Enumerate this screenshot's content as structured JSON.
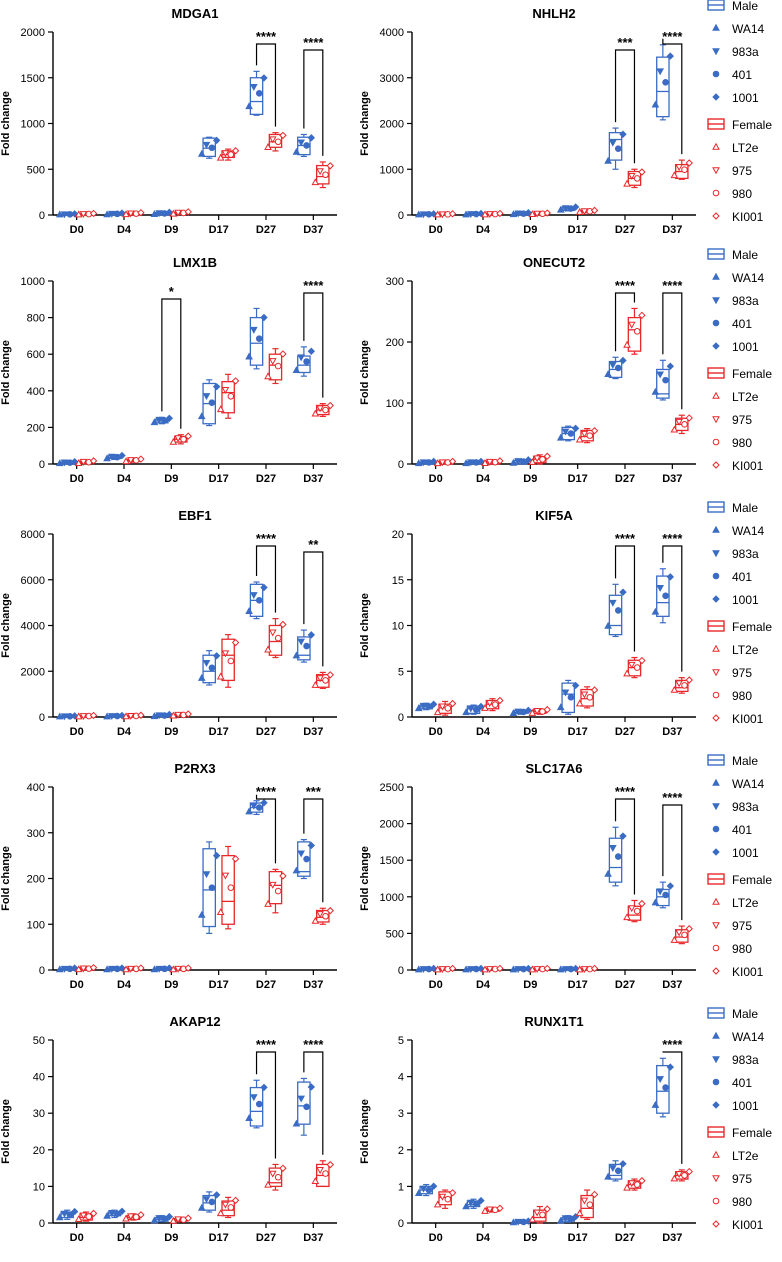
{
  "colors": {
    "male": "#3a6cc4",
    "female": "#e8282b"
  },
  "legend": {
    "male_label": "Male",
    "male_lines": [
      "WA14",
      "983a",
      "401",
      "1001"
    ],
    "female_label": "Female",
    "female_lines": [
      "LT2e",
      "975",
      "980",
      "KI001"
    ]
  },
  "chart_data": [
    {
      "type": "box",
      "title": "MDGA1",
      "ylabel": "Fold change",
      "categories": [
        "D0",
        "D4",
        "D9",
        "D17",
        "D27",
        "D37"
      ],
      "yticks": [
        0,
        500,
        1000,
        1500,
        2000
      ],
      "ylim": [
        0,
        2000
      ],
      "series": [
        {
          "name": "Male",
          "medians": [
            5,
            10,
            15,
            730,
            1240,
            760
          ],
          "q1": [
            0,
            0,
            0,
            640,
            1100,
            660
          ],
          "q3": [
            10,
            20,
            25,
            840,
            1500,
            850
          ],
          "min": [
            0,
            0,
            0,
            620,
            1090,
            640
          ],
          "max": [
            15,
            25,
            35,
            850,
            1570,
            880
          ]
        },
        {
          "name": "Female",
          "medians": [
            8,
            10,
            20,
            660,
            800,
            420
          ],
          "q1": [
            0,
            0,
            10,
            630,
            740,
            340
          ],
          "q3": [
            15,
            20,
            30,
            700,
            880,
            540
          ],
          "min": [
            0,
            0,
            5,
            600,
            700,
            300
          ],
          "max": [
            20,
            30,
            40,
            720,
            900,
            580
          ]
        }
      ],
      "significance": [
        {
          "category": "D27",
          "label": "****"
        },
        {
          "category": "D37",
          "label": "****"
        }
      ]
    },
    {
      "type": "box",
      "title": "NHLH2",
      "ylabel": "Fold change",
      "categories": [
        "D0",
        "D4",
        "D9",
        "D17",
        "D27",
        "D37"
      ],
      "yticks": [
        0,
        1000,
        2000,
        3000,
        4000
      ],
      "ylim": [
        0,
        4000
      ],
      "series": [
        {
          "name": "Male",
          "medians": [
            10,
            20,
            30,
            130,
            1650,
            2700
          ],
          "q1": [
            0,
            0,
            10,
            100,
            1200,
            2150
          ],
          "q3": [
            20,
            35,
            50,
            170,
            1800,
            3450
          ],
          "min": [
            0,
            0,
            0,
            90,
            1000,
            2080
          ],
          "max": [
            30,
            40,
            60,
            190,
            1900,
            3720
          ]
        },
        {
          "name": "Female",
          "medians": [
            15,
            20,
            30,
            80,
            800,
            950
          ],
          "q1": [
            0,
            0,
            10,
            60,
            650,
            800
          ],
          "q3": [
            25,
            35,
            40,
            100,
            950,
            1100
          ],
          "min": [
            0,
            0,
            5,
            50,
            600,
            780
          ],
          "max": [
            30,
            40,
            50,
            110,
            1000,
            1200
          ]
        }
      ],
      "significance": [
        {
          "category": "D27",
          "label": "***"
        },
        {
          "category": "D37",
          "label": "****"
        }
      ]
    },
    {
      "type": "box",
      "title": "LMX1B",
      "ylabel": "Fold change",
      "categories": [
        "D0",
        "D4",
        "D9",
        "D17",
        "D27",
        "D37"
      ],
      "yticks": [
        0,
        200,
        400,
        600,
        800,
        1000
      ],
      "ylim": [
        0,
        1000
      ],
      "series": [
        {
          "name": "Male",
          "medians": [
            5,
            35,
            235,
            330,
            660,
            540
          ],
          "q1": [
            0,
            30,
            225,
            220,
            540,
            500
          ],
          "q3": [
            10,
            45,
            245,
            440,
            800,
            590
          ],
          "min": [
            0,
            25,
            220,
            210,
            520,
            480
          ],
          "max": [
            15,
            50,
            255,
            460,
            850,
            640
          ]
        },
        {
          "name": "Female",
          "medians": [
            10,
            20,
            135,
            390,
            540,
            295
          ],
          "q1": [
            5,
            15,
            120,
            280,
            460,
            270
          ],
          "q3": [
            15,
            25,
            150,
            450,
            600,
            320
          ],
          "min": [
            0,
            10,
            110,
            250,
            440,
            260
          ],
          "max": [
            20,
            30,
            160,
            490,
            630,
            330
          ]
        }
      ],
      "significance": [
        {
          "category": "D9",
          "label": "*"
        },
        {
          "category": "D37",
          "label": "****"
        }
      ]
    },
    {
      "type": "box",
      "title": "ONECUT2",
      "ylabel": "Fold change",
      "categories": [
        "D0",
        "D4",
        "D9",
        "D17",
        "D27",
        "D37"
      ],
      "yticks": [
        0,
        100,
        200,
        300
      ],
      "ylim": [
        0,
        300
      ],
      "series": [
        {
          "name": "Male",
          "medians": [
            2,
            2,
            3,
            50,
            155,
            115
          ],
          "q1": [
            0,
            0,
            0,
            40,
            142,
            108
          ],
          "q3": [
            3,
            4,
            6,
            60,
            168,
            155
          ],
          "min": [
            0,
            0,
            0,
            38,
            140,
            105
          ],
          "max": [
            5,
            5,
            8,
            62,
            175,
            170
          ]
        },
        {
          "name": "Female",
          "medians": [
            2,
            3,
            8,
            45,
            220,
            65
          ],
          "q1": [
            0,
            0,
            2,
            38,
            185,
            55
          ],
          "q3": [
            4,
            5,
            12,
            55,
            240,
            75
          ],
          "min": [
            0,
            0,
            0,
            35,
            180,
            50
          ],
          "max": [
            5,
            6,
            15,
            58,
            255,
            80
          ]
        }
      ],
      "significance": [
        {
          "category": "D27",
          "label": "****"
        },
        {
          "category": "D37",
          "label": "****"
        }
      ]
    },
    {
      "type": "box",
      "title": "EBF1",
      "ylabel": "Fold change",
      "categories": [
        "D0",
        "D4",
        "D9",
        "D17",
        "D27",
        "D37"
      ],
      "yticks": [
        0,
        2000,
        4000,
        6000,
        8000
      ],
      "ylim": [
        0,
        8000
      ],
      "series": [
        {
          "name": "Male",
          "medians": [
            20,
            30,
            60,
            2000,
            5100,
            2700
          ],
          "q1": [
            0,
            0,
            30,
            1500,
            4400,
            2500
          ],
          "q3": [
            40,
            60,
            100,
            2700,
            5800,
            3500
          ],
          "min": [
            0,
            0,
            0,
            1400,
            4300,
            2400
          ],
          "max": [
            60,
            80,
            130,
            2900,
            5900,
            3800
          ]
        },
        {
          "name": "Female",
          "medians": [
            30,
            40,
            80,
            2700,
            3300,
            1600
          ],
          "q1": [
            0,
            10,
            50,
            1600,
            2700,
            1300
          ],
          "q3": [
            60,
            70,
            120,
            3400,
            4000,
            1850
          ],
          "min": [
            0,
            0,
            30,
            1300,
            2600,
            1250
          ],
          "max": [
            80,
            90,
            150,
            3600,
            4300,
            1950
          ]
        }
      ],
      "significance": [
        {
          "category": "D27",
          "label": "****"
        },
        {
          "category": "D37",
          "label": "**"
        }
      ]
    },
    {
      "type": "box",
      "title": "KIF5A",
      "ylabel": "Fold change",
      "categories": [
        "D0",
        "D4",
        "D9",
        "D17",
        "D27",
        "D37"
      ],
      "yticks": [
        0,
        5,
        10,
        15,
        20
      ],
      "ylim": [
        0,
        20
      ],
      "series": [
        {
          "name": "Male",
          "medians": [
            1.1,
            0.9,
            0.5,
            2.5,
            10.0,
            12.5
          ],
          "q1": [
            0.9,
            0.4,
            0.4,
            0.5,
            9.0,
            11.0
          ],
          "q3": [
            1.3,
            1.2,
            0.7,
            3.7,
            13.3,
            15.4
          ],
          "min": [
            0.8,
            0.3,
            0.3,
            0.3,
            8.8,
            10.3
          ],
          "max": [
            1.5,
            1.3,
            0.8,
            4.0,
            14.5,
            16.2
          ]
        },
        {
          "name": "Female",
          "medians": [
            1.0,
            1.4,
            0.6,
            2.0,
            5.4,
            3.2
          ],
          "q1": [
            0.4,
            0.9,
            0.4,
            1.2,
            4.5,
            2.8
          ],
          "q3": [
            1.4,
            1.8,
            0.8,
            3.0,
            6.2,
            4.0
          ],
          "min": [
            0.2,
            0.7,
            0.3,
            1.0,
            4.3,
            2.6
          ],
          "max": [
            1.7,
            2.0,
            0.9,
            3.3,
            6.5,
            4.3
          ]
        }
      ],
      "significance": [
        {
          "category": "D27",
          "label": "****"
        },
        {
          "category": "D37",
          "label": "****"
        }
      ]
    },
    {
      "type": "box",
      "title": "P2RX3",
      "ylabel": "Fold change",
      "categories": [
        "D0",
        "D4",
        "D9",
        "D17",
        "D27",
        "D37"
      ],
      "yticks": [
        0,
        100,
        200,
        300,
        400
      ],
      "ylim": [
        0,
        400
      ],
      "series": [
        {
          "name": "Male",
          "medians": [
            2,
            2,
            2,
            175,
            355,
            215
          ],
          "q1": [
            0,
            0,
            0,
            95,
            345,
            205
          ],
          "q3": [
            4,
            4,
            4,
            265,
            365,
            280
          ],
          "min": [
            0,
            0,
            0,
            80,
            340,
            200
          ],
          "max": [
            5,
            5,
            5,
            280,
            370,
            285
          ]
        },
        {
          "name": "Female",
          "medians": [
            3,
            2,
            2,
            150,
            185,
            115
          ],
          "q1": [
            0,
            0,
            0,
            100,
            145,
            105
          ],
          "q3": [
            5,
            4,
            4,
            250,
            215,
            130
          ],
          "min": [
            0,
            0,
            0,
            90,
            125,
            100
          ],
          "max": [
            6,
            5,
            5,
            270,
            220,
            135
          ]
        }
      ],
      "significance": [
        {
          "category": "D27",
          "label": "****"
        },
        {
          "category": "D37",
          "label": "***"
        }
      ]
    },
    {
      "type": "box",
      "title": "SLC17A6",
      "ylabel": "Fold change",
      "categories": [
        "D0",
        "D4",
        "D9",
        "D17",
        "D27",
        "D37"
      ],
      "yticks": [
        0,
        500,
        1000,
        1500,
        2000,
        2500
      ],
      "ylim": [
        0,
        2500
      ],
      "series": [
        {
          "name": "Male",
          "medians": [
            10,
            10,
            10,
            10,
            1400,
            1000
          ],
          "q1": [
            0,
            0,
            0,
            0,
            1200,
            880
          ],
          "q3": [
            20,
            20,
            20,
            20,
            1800,
            1100
          ],
          "min": [
            0,
            0,
            0,
            0,
            1150,
            850
          ],
          "max": [
            25,
            25,
            25,
            25,
            1950,
            1200
          ]
        },
        {
          "name": "Female",
          "medians": [
            10,
            10,
            10,
            10,
            750,
            450
          ],
          "q1": [
            0,
            0,
            0,
            0,
            680,
            380
          ],
          "q3": [
            20,
            20,
            20,
            20,
            870,
            550
          ],
          "min": [
            0,
            0,
            0,
            0,
            660,
            360
          ],
          "max": [
            25,
            25,
            25,
            25,
            950,
            600
          ]
        }
      ],
      "significance": [
        {
          "category": "D27",
          "label": "****"
        },
        {
          "category": "D37",
          "label": "****"
        }
      ]
    },
    {
      "type": "box",
      "title": "AKAP12",
      "ylabel": "Fold change",
      "categories": [
        "D0",
        "D4",
        "D9",
        "D17",
        "D27",
        "D37"
      ],
      "yticks": [
        0,
        10,
        20,
        30,
        40,
        50
      ],
      "ylim": [
        0,
        50
      ],
      "series": [
        {
          "name": "Male",
          "medians": [
            2.5,
            2.5,
            1.0,
            5.5,
            30.5,
            32.0
          ],
          "q1": [
            1.5,
            2.0,
            0.5,
            3.5,
            26.5,
            27.0
          ],
          "q3": [
            3.0,
            3.0,
            1.5,
            7.5,
            37.0,
            38.5
          ],
          "min": [
            1.0,
            1.5,
            0.3,
            3.0,
            26.0,
            24.0
          ],
          "max": [
            3.5,
            3.5,
            2.0,
            8.5,
            39.0,
            39.5
          ]
        },
        {
          "name": "Female",
          "medians": [
            1.5,
            1.5,
            0.8,
            3.5,
            11.0,
            13.0
          ],
          "q1": [
            0.8,
            1.0,
            0.5,
            2.0,
            10.0,
            10.0
          ],
          "q3": [
            2.5,
            2.0,
            1.2,
            6.0,
            15.0,
            16.0
          ],
          "min": [
            0.5,
            0.8,
            0.3,
            1.5,
            9.0,
            10.0
          ],
          "max": [
            3.0,
            2.5,
            1.5,
            7.0,
            16.0,
            17.0
          ]
        }
      ],
      "significance": [
        {
          "category": "D27",
          "label": "****"
        },
        {
          "category": "D37",
          "label": "****"
        }
      ]
    },
    {
      "type": "box",
      "title": "RUNX1T1",
      "ylabel": "Fold change",
      "categories": [
        "D0",
        "D4",
        "D9",
        "D17",
        "D27",
        "D37"
      ],
      "yticks": [
        0,
        1,
        2,
        3,
        4,
        5
      ],
      "ylim": [
        0,
        5
      ],
      "series": [
        {
          "name": "Male",
          "medians": [
            0.9,
            0.5,
            0.02,
            0.1,
            1.3,
            3.6
          ],
          "q1": [
            0.8,
            0.45,
            0.0,
            0.05,
            1.2,
            3.0
          ],
          "q3": [
            1.0,
            0.6,
            0.05,
            0.15,
            1.6,
            4.3
          ],
          "min": [
            0.75,
            0.4,
            0.0,
            0.02,
            1.15,
            2.9
          ],
          "max": [
            1.05,
            0.65,
            0.06,
            0.2,
            1.7,
            4.5
          ]
        },
        {
          "name": "Female",
          "medians": [
            0.7,
            0.35,
            0.15,
            0.4,
            1.05,
            1.3
          ],
          "q1": [
            0.5,
            0.32,
            0.05,
            0.15,
            0.95,
            1.2
          ],
          "q3": [
            0.85,
            0.4,
            0.35,
            0.75,
            1.15,
            1.4
          ],
          "min": [
            0.4,
            0.3,
            0.0,
            0.1,
            0.9,
            1.15
          ],
          "max": [
            0.9,
            0.42,
            0.45,
            0.9,
            1.2,
            1.45
          ]
        }
      ],
      "significance": [
        {
          "category": "D37",
          "label": "****"
        }
      ]
    }
  ]
}
